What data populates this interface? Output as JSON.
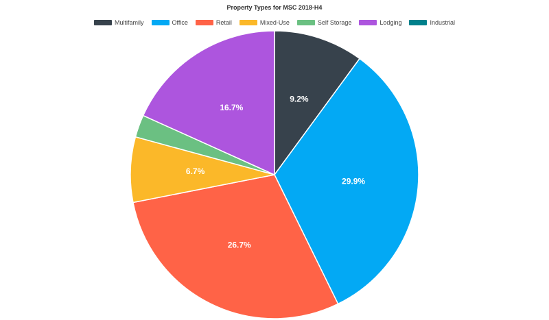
{
  "chart_data": {
    "type": "pie",
    "title": "Property Types for MSC 2018-H4",
    "legend_position": "top",
    "slices": [
      {
        "name": "Multifamily",
        "value": 9.2,
        "color": "#37424c"
      },
      {
        "name": "Office",
        "value": 29.9,
        "color": "#03a9f4"
      },
      {
        "name": "Retail",
        "value": 26.7,
        "color": "#ff6347"
      },
      {
        "name": "Mixed-Use",
        "value": 6.7,
        "color": "#fbb829"
      },
      {
        "name": "Self Storage",
        "value": 2.3,
        "color": "#6bc082"
      },
      {
        "name": "Lodging",
        "value": 16.7,
        "color": "#ad55de"
      },
      {
        "name": "Industrial",
        "value": 0,
        "color": "#00808b"
      }
    ],
    "slice_labels": [
      "9.2%",
      "29.9%",
      "26.7%",
      "6.7%",
      "",
      "16.7%",
      ""
    ]
  }
}
